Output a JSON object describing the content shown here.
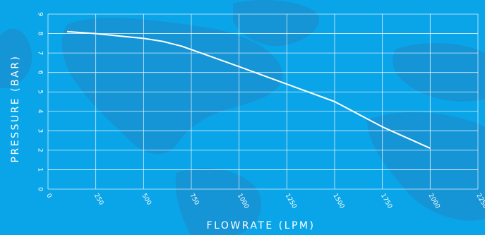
{
  "chart_data": {
    "type": "line",
    "xlabel": "FLOWRATE (LPM)",
    "ylabel": "PRESSURE (BAR)",
    "xlim": [
      0,
      2250
    ],
    "ylim": [
      0,
      9
    ],
    "xticks": [
      "0",
      "250",
      "500",
      "750",
      "1000",
      "1250",
      "1500",
      "1750",
      "2000",
      "2250"
    ],
    "yticks": [
      "0",
      "1",
      "2",
      "3",
      "4",
      "5",
      "6",
      "7",
      "8",
      "9"
    ],
    "grid": true,
    "series": [
      {
        "x": [
          100,
          250,
          400,
          500,
          600,
          700,
          800,
          1000,
          1250,
          1500,
          1750,
          2000
        ],
        "y": [
          8.1,
          8.0,
          7.85,
          7.75,
          7.6,
          7.35,
          7.0,
          6.3,
          5.4,
          4.5,
          3.2,
          2.1
        ]
      }
    ],
    "colors": {
      "background": "#0aa5e8",
      "land": "#1f87c6",
      "grid": "#ffffff",
      "line": "#ffffff"
    }
  }
}
